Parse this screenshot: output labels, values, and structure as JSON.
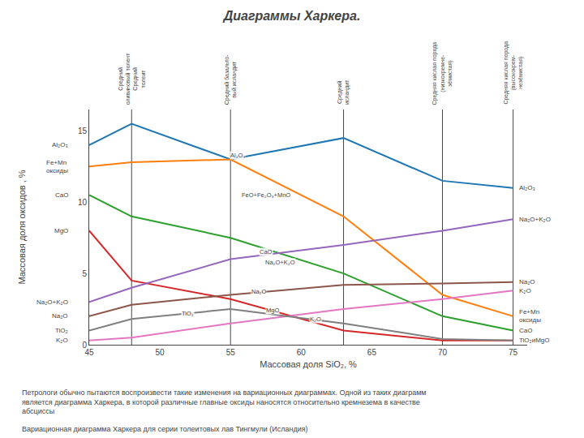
{
  "chart_data": {
    "type": "line",
    "title": "Диаграммы Харкера.",
    "xlabel": "Массовая доля SiO₂, %",
    "ylabel": "Массовая доля оксидов , %",
    "xlim": [
      45,
      76
    ],
    "ylim": [
      0,
      16.5
    ],
    "xticks": [
      45,
      50,
      55,
      60,
      65,
      70,
      75
    ],
    "yticks": [
      0,
      5,
      10,
      15
    ],
    "grid": false,
    "x": [
      45,
      48,
      55,
      63,
      70,
      75
    ],
    "series": [
      {
        "values": [
          14.0,
          15.5,
          13.0,
          14.5,
          11.5,
          11.0
        ]
      },
      {
        "values": [
          12.5,
          12.8,
          13.0,
          9.0,
          3.5,
          2.0
        ]
      },
      {
        "values": [
          10.5,
          9.0,
          7.5,
          5.0,
          2.0,
          1.0
        ]
      },
      {
        "values": [
          8.0,
          4.5,
          3.2,
          1.0,
          0.3,
          0.3
        ]
      },
      {
        "values": [
          3.0,
          4.0,
          6.0,
          7.0,
          8.0,
          8.8
        ]
      },
      {
        "values": [
          2.0,
          2.8,
          3.5,
          4.2,
          4.3,
          4.4
        ]
      },
      {
        "values": [
          0.3,
          0.5,
          1.5,
          2.5,
          3.2,
          3.8
        ]
      },
      {
        "values": [
          1.0,
          1.8,
          2.5,
          1.5,
          0.4,
          0.3
        ]
      }
    ],
    "vertical_lines": [
      {
        "x": 48,
        "label": "Средний\nоливиновый толент\nСредний\nтолеит"
      },
      {
        "x": 55,
        "label": "Средний базальто-\nвый исландит"
      },
      {
        "x": 63,
        "label": "Средний\nисландит"
      },
      {
        "x": 70,
        "label": "Средняя кислая порода\n(низкокремне-\nзёмистая)"
      },
      {
        "x": 75,
        "label": "Средняя кислая порода\n(высококрем-\nнезёмистая)"
      }
    ],
    "left_labels": [
      {
        "text": "Al₂O₃",
        "x": 45,
        "y": 14.0
      },
      {
        "text": "Fe+Mn\nоксиды",
        "x": 45,
        "y": 12.5
      },
      {
        "text": "CaO",
        "x": 45,
        "y": 10.5
      },
      {
        "text": "MgO",
        "x": 45,
        "y": 8.0
      },
      {
        "text": "Na₂O+K₂O",
        "x": 45,
        "y": 3.0
      },
      {
        "text": "Na₂O",
        "x": 45,
        "y": 2.0
      },
      {
        "text": "TiO₂",
        "x": 45,
        "y": 1.0
      },
      {
        "text": "K₂O",
        "x": 45,
        "y": 0.3
      }
    ],
    "right_labels": [
      {
        "text": "Al₂O₃",
        "x": 75,
        "y": 11.0
      },
      {
        "text": "Na₂O+K₂O",
        "x": 75,
        "y": 8.8
      },
      {
        "text": "Na₂O",
        "x": 75,
        "y": 4.4
      },
      {
        "text": "K₂O",
        "x": 75,
        "y": 3.8
      },
      {
        "text": "Fe+Mn\nоксиды",
        "x": 75,
        "y": 2.0
      },
      {
        "text": "CaO",
        "x": 75,
        "y": 1.0
      },
      {
        "text": "TiO₂иMgO",
        "x": 75,
        "y": 0.3
      }
    ],
    "mid_labels": [
      {
        "text": "Al₂O₃",
        "x": 55.5,
        "y": 13.3
      },
      {
        "text": "FeO+Fe₂O₃+MnO",
        "x": 57.5,
        "y": 10.5
      },
      {
        "text": "CaO",
        "x": 57.5,
        "y": 6.5
      },
      {
        "text": "Na₂O+K₂O",
        "x": 58.5,
        "y": 5.8
      },
      {
        "text": "Na₂O",
        "x": 57.0,
        "y": 3.7
      },
      {
        "text": "MgO",
        "x": 58.0,
        "y": 2.4
      },
      {
        "text": "K₂O",
        "x": 61.0,
        "y": 1.8
      },
      {
        "text": "TiO₂",
        "x": 52.0,
        "y": 2.2
      }
    ],
    "notes": [
      "Петрологи обычно пытаются воспроизвести такие изменения на вариационных диаграммах. Одной из таких диаграмм является диаграмма Харкера, в которой различные главные оксиды наносятся относительно кремнезема в качестве абсциссы",
      "Вариационная диаграмма Харкера для серии толеитовых лав Тингмули (Исландия)"
    ]
  }
}
